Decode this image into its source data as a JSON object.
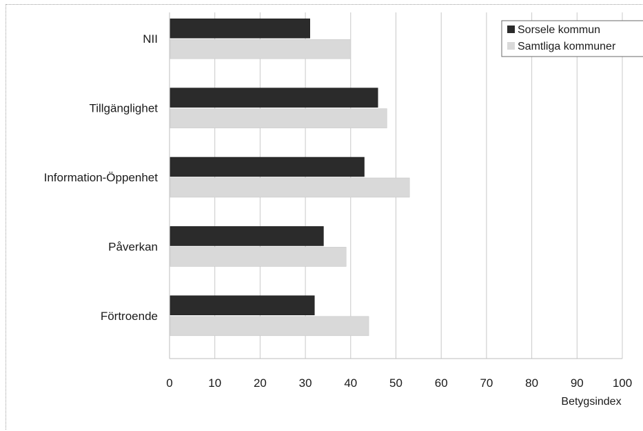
{
  "chart_data": {
    "type": "bar",
    "orientation": "horizontal",
    "categories": [
      "NII",
      "Tillgänglighet",
      "Information-Öppenhet",
      "Påverkan",
      "Förtroende"
    ],
    "series": [
      {
        "name": "Sorsele kommun",
        "values": [
          31,
          46,
          43,
          34,
          32
        ],
        "color": "#2b2b2b"
      },
      {
        "name": "Samtliga kommuner",
        "values": [
          40,
          48,
          53,
          39,
          44
        ],
        "color": "#d9d9d9"
      }
    ],
    "xlabel": "Betygsindex",
    "xlim": [
      0,
      100
    ],
    "xticks": [
      0,
      10,
      20,
      30,
      40,
      50,
      60,
      70,
      80,
      90,
      100
    ],
    "grid": "vertical",
    "legend": "top-right"
  }
}
